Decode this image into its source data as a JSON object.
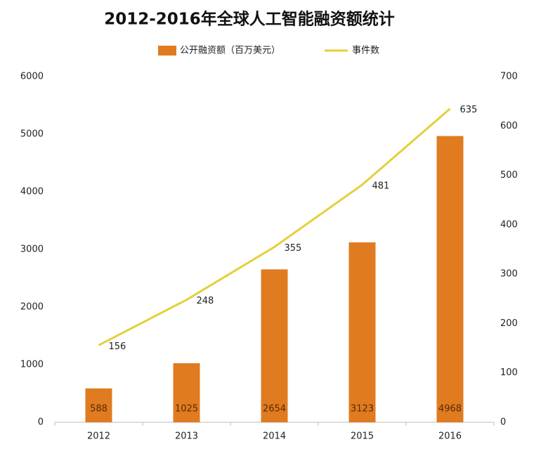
{
  "chart_data": {
    "type": "bar",
    "title": "2012-2016年全球人工智能融资额统计",
    "categories": [
      "2012",
      "2013",
      "2014",
      "2015",
      "2016"
    ],
    "series": [
      {
        "name": "公开融资额（百万美元）",
        "color": "#e07b20",
        "values": [
          588,
          1025,
          2654,
          3123,
          4968
        ]
      },
      {
        "name": "事件数",
        "type": "line",
        "axis": "y2",
        "color": "#e4d03a",
        "values": [
          156,
          248,
          355,
          481,
          635
        ]
      }
    ],
    "ylim": [
      0,
      6000
    ],
    "yticks": [
      0,
      1000,
      2000,
      3000,
      4000,
      5000,
      6000
    ],
    "y2lim": [
      0,
      700
    ],
    "y2ticks": [
      0,
      100,
      200,
      300,
      400,
      500,
      600,
      700
    ],
    "legend": "top",
    "grid": false
  }
}
